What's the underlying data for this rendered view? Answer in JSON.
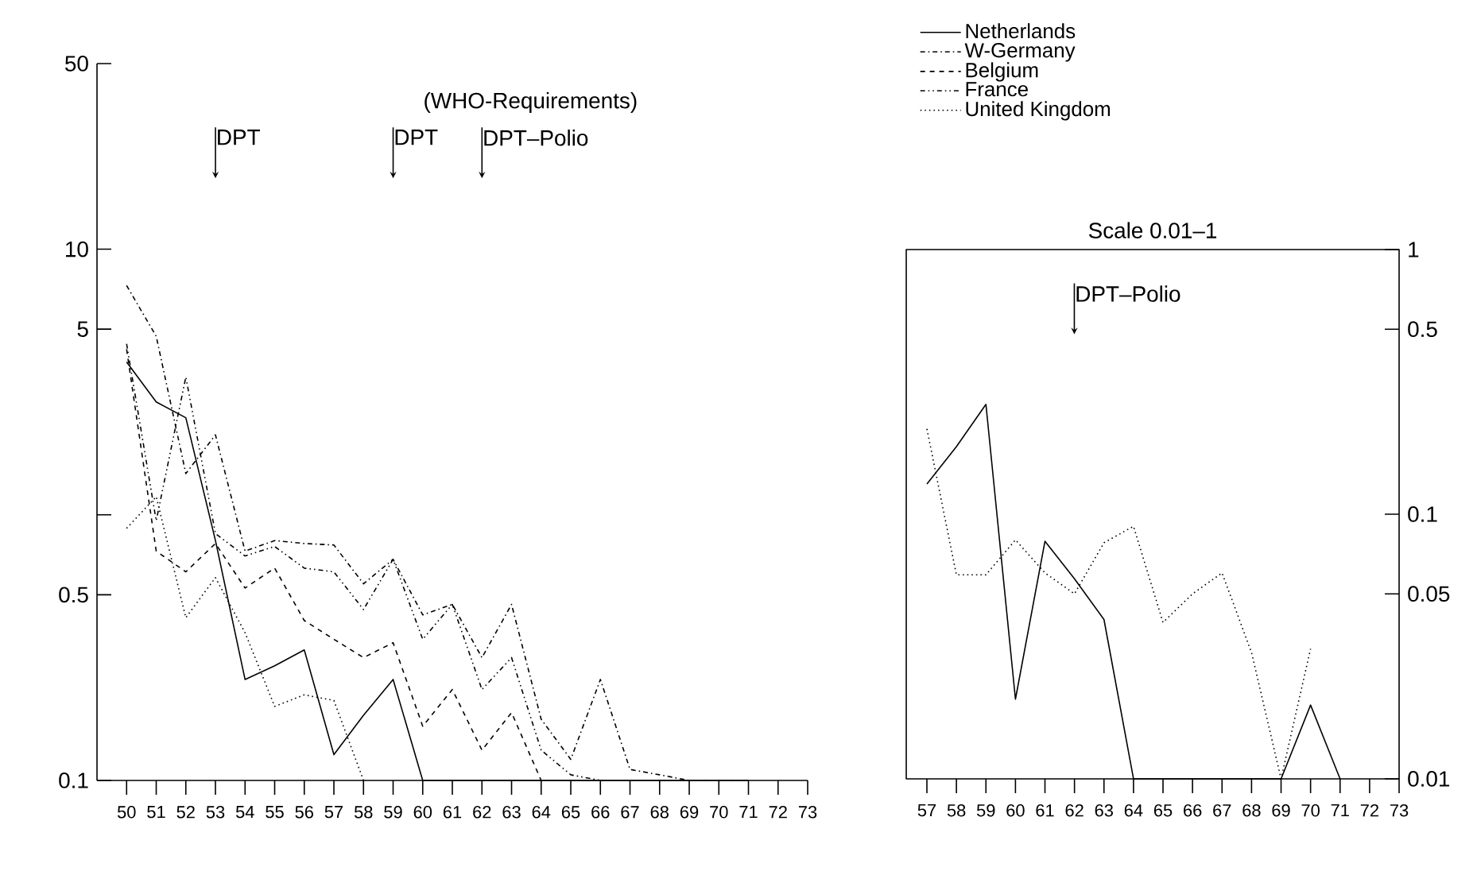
{
  "chart_data": [
    {
      "type": "line",
      "x": [
        50,
        51,
        52,
        53,
        54,
        55,
        56,
        57,
        58,
        59,
        60,
        61,
        62,
        63,
        64,
        65,
        66,
        67,
        68,
        69,
        70,
        71
      ],
      "xlim": [
        49,
        73
      ],
      "xticks": [
        50,
        51,
        52,
        53,
        54,
        55,
        56,
        57,
        58,
        59,
        60,
        61,
        62,
        63,
        64,
        65,
        66,
        67,
        68,
        69,
        70,
        71,
        72,
        73
      ],
      "log": "y",
      "ylim": [
        0.1,
        50
      ],
      "yticks": [
        0.1,
        0.5,
        {
          "value": 1,
          "label": null
        },
        5,
        10,
        50
      ],
      "legend": "top right",
      "series": [
        {
          "name": "Netherlands",
          "color": "#000000",
          "line_style": "solid",
          "values": [
            3.76,
            2.66,
            2.32,
            0.8,
            0.24,
            0.27,
            0.31,
            0.125,
            0.176,
            0.24,
            0.1,
            0.1,
            0.1,
            0.1,
            0.1,
            0.1,
            0.1,
            0.1,
            0.1,
            0.1,
            0.1,
            0.1
          ]
        },
        {
          "name": "W-Germany",
          "color": "#000000",
          "line_style": "dashdot",
          "values": [
            7.3,
            4.7,
            1.43,
            2.0,
            0.73,
            0.8,
            0.78,
            0.77,
            0.55,
            0.68,
            0.42,
            0.46,
            0.29,
            0.46,
            0.17,
            0.12,
            0.24,
            0.11,
            0.105,
            0.1,
            0.1,
            0.1
          ]
        },
        {
          "name": "Belgium",
          "color": "#000000",
          "line_style": "dashed",
          "values": [
            4.2,
            0.73,
            0.61,
            0.78,
            0.53,
            0.63,
            0.4,
            0.34,
            0.29,
            0.33,
            0.16,
            0.22,
            0.13,
            0.18,
            0.1,
            null,
            null,
            null,
            null,
            null,
            null,
            null
          ]
        },
        {
          "name": "France",
          "color": "#000000",
          "line_style": "dashdotdot",
          "values": [
            4.4,
            0.95,
            3.3,
            0.85,
            0.7,
            0.76,
            0.63,
            0.61,
            0.44,
            0.68,
            0.34,
            0.46,
            0.22,
            0.29,
            0.13,
            0.105,
            0.1,
            null,
            null,
            null,
            null,
            null
          ]
        },
        {
          "name": "United Kingdom",
          "color": "#000000",
          "line_style": "dotted",
          "values": [
            0.89,
            1.17,
            0.41,
            0.58,
            0.36,
            0.19,
            0.21,
            0.2,
            0.1,
            null,
            null,
            null,
            null,
            null,
            null,
            null,
            null,
            null,
            null,
            null,
            null,
            null
          ]
        }
      ],
      "annotations": [
        "(WHO-Requirements)",
        "DPT",
        "DPT",
        "DPT–Polio"
      ]
    },
    {
      "type": "line",
      "title": "Scale 0.01–1",
      "x": [
        57,
        58,
        59,
        60,
        61,
        62,
        63,
        64,
        65,
        66,
        67,
        68,
        69,
        70,
        71
      ],
      "xlim": [
        56.3,
        73
      ],
      "xticks": [
        57,
        58,
        59,
        60,
        61,
        62,
        63,
        64,
        65,
        66,
        67,
        68,
        69,
        70,
        71,
        72,
        73
      ],
      "log": "y",
      "ylim": [
        0.01,
        1
      ],
      "yticks": [
        0.01,
        0.05,
        0.1,
        0.5,
        1
      ],
      "series": [
        {
          "color": "#000000",
          "line_style": "solid",
          "values": [
            0.13,
            0.18,
            0.26,
            0.02,
            0.079,
            0.057,
            0.04,
            0.01,
            0.01,
            0.01,
            0.01,
            0.01,
            0.01,
            0.019,
            0.01
          ]
        },
        {
          "color": "#000000",
          "line_style": "dotted",
          "values": [
            0.21,
            0.059,
            0.059,
            0.08,
            0.06,
            0.05,
            0.078,
            0.09,
            0.039,
            0.05,
            0.06,
            0.03,
            0.01,
            0.031,
            null
          ]
        }
      ],
      "annotations": [
        "DPT–Polio"
      ]
    }
  ]
}
